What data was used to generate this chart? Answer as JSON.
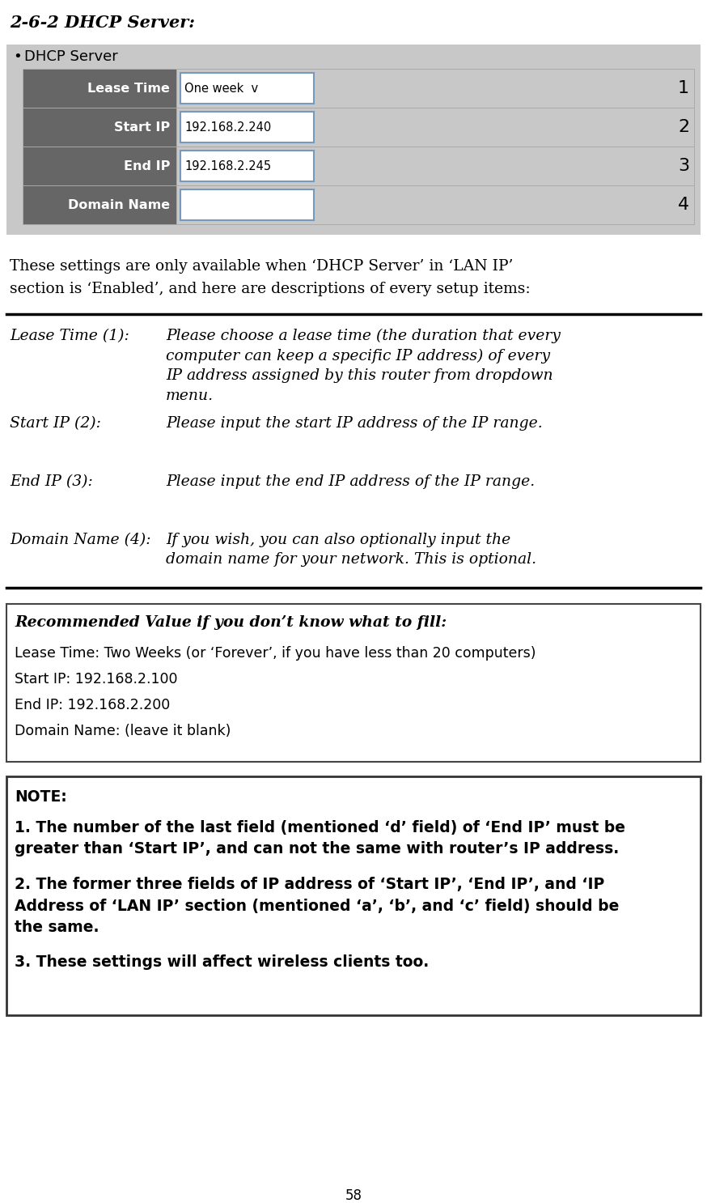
{
  "title": "2-6-2 DHCP Server:",
  "bg_color": "#ffffff",
  "table_header_color": "#666666",
  "table_bg_color": "#c8c8c8",
  "table_rows": [
    {
      "label": "Lease Time",
      "value": "One week  v",
      "number": "1",
      "is_bold": false
    },
    {
      "label": "Start IP",
      "value": "192.168.2.240",
      "number": "2",
      "is_bold": false
    },
    {
      "label": "End IP",
      "value": "192.168.2.245",
      "number": "3",
      "is_bold": false
    },
    {
      "label": "Domain Name",
      "value": "",
      "number": "4",
      "is_bold": true
    }
  ],
  "bullet_text": "DHCP Server",
  "intro_text1": "These settings are only available when ‘DHCP Server’ in ‘LAN IP’",
  "intro_text2": "section is ‘Enabled’, and here are descriptions of every setup items:",
  "desc_items": [
    {
      "label": "Lease Time (1):",
      "text": "Please choose a lease time (the duration that every\ncomputer can keep a specific IP address) of every\nIP address assigned by this router from dropdown\nmenu."
    },
    {
      "label": "Start IP (2):",
      "text": "Please input the start IP address of the IP range."
    },
    {
      "label": "End IP (3):",
      "text": "Please input the end IP address of the IP range."
    },
    {
      "label": "Domain Name (4):",
      "text": "If you wish, you can also optionally input the\ndomain name for your network. This is optional."
    }
  ],
  "recommended_title": "Recommended Value if you don’t know what to fill:",
  "recommended_lines": [
    "Lease Time: Two Weeks (or ‘Forever’, if you have less than 20 computers)",
    "Start IP: 192.168.2.100",
    "End IP: 192.168.2.200",
    "Domain Name: (leave it blank)"
  ],
  "note_title": "NOTE:",
  "note_items": [
    "1. The number of the last field (mentioned ‘d’ field) of ‘End IP’ must be\ngreater than ‘Start IP’, and can not the same with router’s IP address.",
    "2. The former three fields of IP address of ‘Start IP’, ‘End IP’, and ‘IP\nAddress of ‘LAN IP’ section (mentioned ‘a’, ‘b’, and ‘c’ field) should be\nthe same.",
    "3. These settings will affect wireless clients too."
  ],
  "page_number": "58"
}
